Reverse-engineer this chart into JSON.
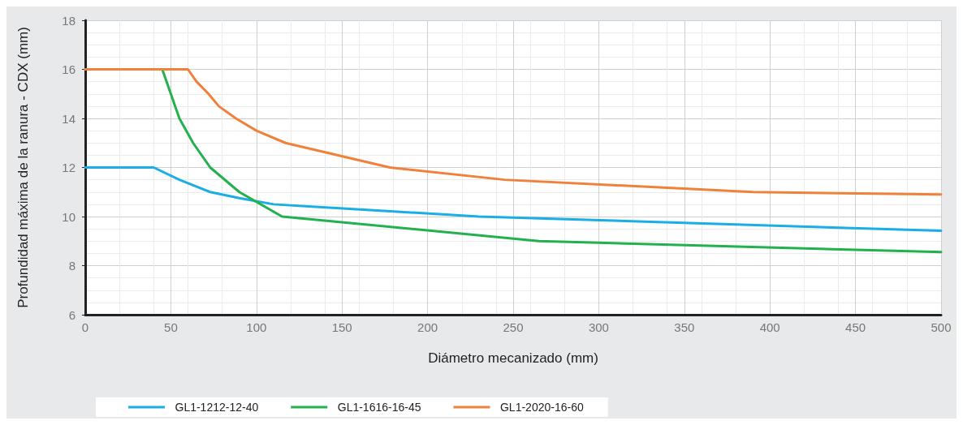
{
  "chart_data": {
    "type": "line",
    "xlabel": "Diámetro mecanizado (mm)",
    "ylabel": "Profundidad máxima de la ranura - CDX (mm)",
    "xlim": [
      0,
      500
    ],
    "xticks": [
      0,
      50,
      100,
      150,
      200,
      250,
      300,
      350,
      400,
      450,
      500
    ],
    "ylim": [
      6,
      18
    ],
    "yticks": [
      6,
      8,
      10,
      12,
      14,
      16,
      18
    ],
    "grid": true,
    "legend": "bottom",
    "marker": "none",
    "line_style": "solid",
    "series": [
      {
        "name": "GL1-1212-12-40",
        "color": "#1aaee6",
        "x": [
          0,
          40,
          55,
          73,
          90,
          110,
          230,
          500
        ],
        "values": [
          12,
          12,
          11.5,
          11,
          10.75,
          10.5,
          10,
          9.42
        ]
      },
      {
        "name": "GL1-1616-16-45",
        "color": "#22b14c",
        "x": [
          0,
          45,
          50,
          55,
          63,
          73,
          90,
          115,
          265,
          500
        ],
        "values": [
          16,
          16,
          15,
          14,
          13,
          12,
          11,
          10,
          9,
          8.55
        ]
      },
      {
        "name": "GL1-2020-16-60",
        "color": "#f0813a",
        "x": [
          0,
          60,
          65,
          72,
          78,
          88,
          100,
          117,
          178,
          245,
          390,
          500
        ],
        "values": [
          16,
          16,
          15.5,
          15,
          14.5,
          14,
          13.5,
          13,
          12,
          11.5,
          11,
          10.9
        ]
      }
    ]
  }
}
